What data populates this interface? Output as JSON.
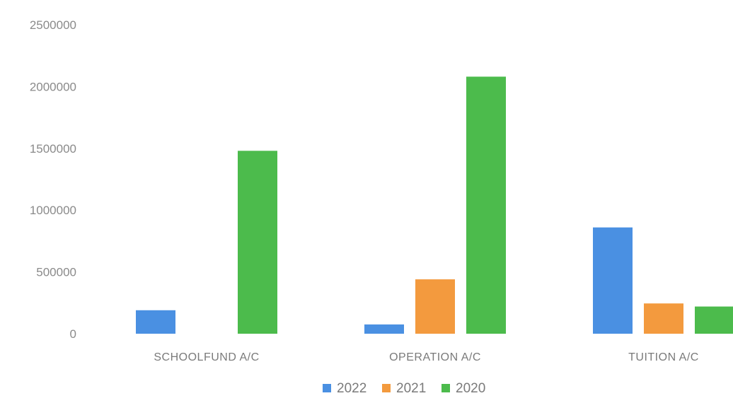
{
  "chart_data": {
    "type": "bar",
    "categories": [
      "SCHOOLFUND A/C",
      "OPERATION A/C",
      "TUITION A/C"
    ],
    "series": [
      {
        "name": "2022",
        "color": "#4a90e2",
        "values": [
          190000,
          75000,
          860000
        ]
      },
      {
        "name": "2021",
        "color": "#f39a3e",
        "values": [
          0,
          440000,
          245000
        ]
      },
      {
        "name": "2020",
        "color": "#4cbb4c",
        "values": [
          1480000,
          2080000,
          220000
        ]
      }
    ],
    "ylim": [
      0,
      2500000
    ],
    "yticks": [
      "0",
      "500000",
      "1000000",
      "1500000",
      "2000000",
      "2500000"
    ],
    "grid": false,
    "legend_position": "bottom"
  }
}
